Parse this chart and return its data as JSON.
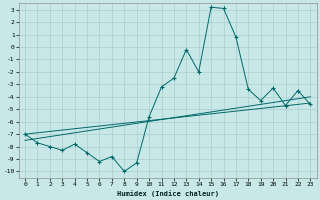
{
  "xlabel": "Humidex (Indice chaleur)",
  "x": [
    0,
    1,
    2,
    3,
    4,
    5,
    6,
    7,
    8,
    9,
    10,
    11,
    12,
    13,
    14,
    15,
    16,
    17,
    18,
    19,
    20,
    21,
    22,
    23
  ],
  "line1": [
    -7,
    -7.7,
    -8.0,
    -8.3,
    -7.8,
    -8.5,
    -9.2,
    -8.8,
    -10,
    -9.3,
    -5.6,
    -3.2,
    -2.5,
    -0.2,
    -2.0,
    3.2,
    3.1,
    0.8,
    -3.4,
    -4.3,
    -3.3,
    -4.7,
    -3.5,
    -4.6
  ],
  "line2_x": [
    0,
    23
  ],
  "line2_y": [
    -7.0,
    -4.5
  ],
  "line3_x": [
    0,
    23
  ],
  "line3_y": [
    -7.5,
    -4.0
  ],
  "bg_color": "#c8e8e8",
  "grid_color": "#aacece",
  "line_color": "#006868",
  "ylim": [
    -10.5,
    3.5
  ],
  "yticks": [
    -10,
    -9,
    -8,
    -7,
    -6,
    -5,
    -4,
    -3,
    -2,
    -1,
    0,
    1,
    2,
    3
  ],
  "xticks": [
    0,
    1,
    2,
    3,
    4,
    5,
    6,
    7,
    8,
    9,
    10,
    11,
    12,
    13,
    14,
    15,
    16,
    17,
    18,
    19,
    20,
    21,
    22,
    23
  ]
}
